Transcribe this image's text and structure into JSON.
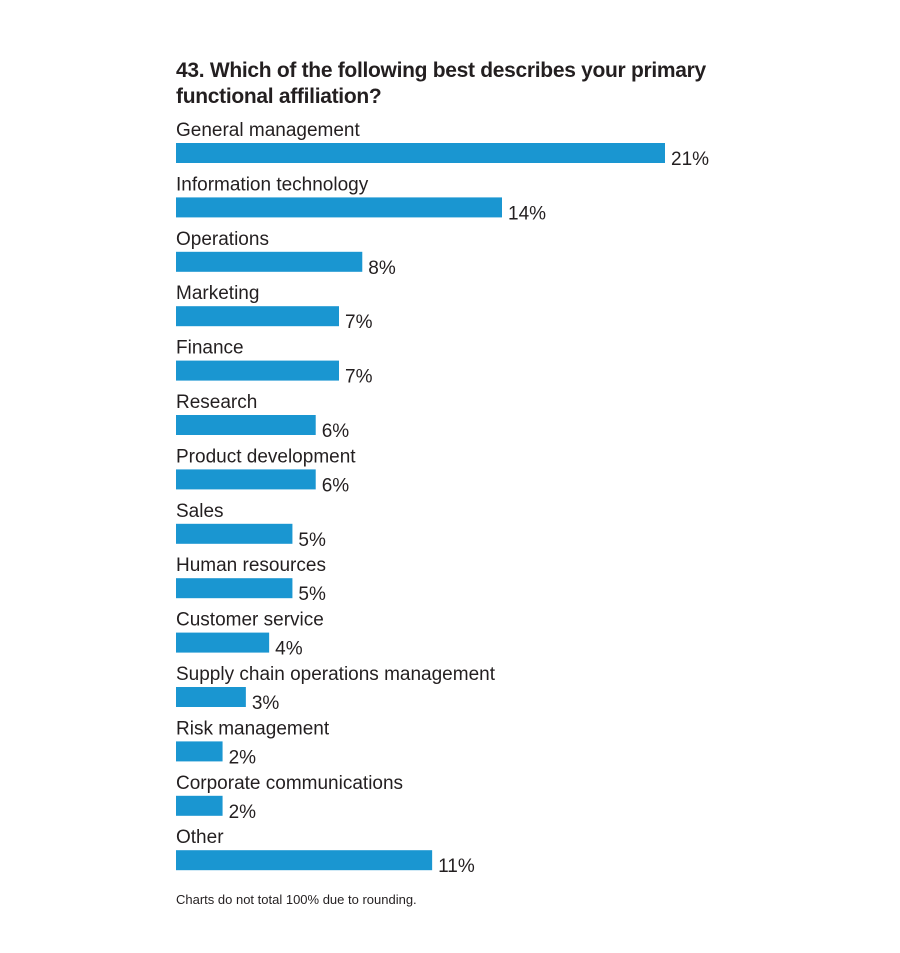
{
  "chart_data": {
    "type": "bar",
    "orientation": "horizontal",
    "title": "43. Which of the following best describes your primary functional affiliation?",
    "categories": [
      "General management",
      "Information technology",
      "Operations",
      "Marketing",
      "Finance",
      "Research",
      "Product development",
      "Sales",
      "Human resources",
      "Customer service",
      "Supply chain operations management",
      "Risk management",
      "Corporate communications",
      "Other"
    ],
    "values": [
      21,
      14,
      8,
      7,
      7,
      6,
      6,
      5,
      5,
      4,
      3,
      2,
      2,
      11
    ],
    "value_labels": [
      "21%",
      "14%",
      "8%",
      "7%",
      "7%",
      "6%",
      "6%",
      "5%",
      "5%",
      "4%",
      "3%",
      "2%",
      "2%",
      "11%"
    ],
    "bar_color": "#1a96d1",
    "grid": false,
    "legend": false
  },
  "footnote": "Charts do not total 100% due to rounding."
}
